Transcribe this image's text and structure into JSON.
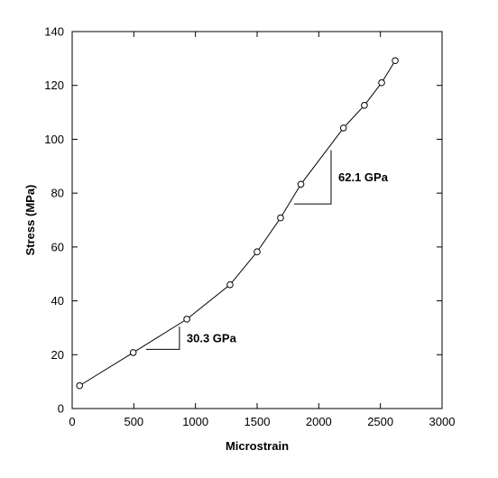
{
  "colors": {
    "background": "#ffffff",
    "ink": "#000000"
  },
  "chart_data": {
    "type": "line",
    "title": "",
    "xlabel": "Microstrain",
    "ylabel": "Stress (MPa)",
    "xlim": [
      0,
      3000
    ],
    "ylim": [
      0,
      140
    ],
    "xticks": [
      0,
      500,
      1000,
      1500,
      2000,
      2500,
      3000
    ],
    "yticks": [
      0,
      20,
      40,
      60,
      80,
      100,
      120,
      140
    ],
    "grid": false,
    "legend": "none",
    "marker": "open-circle",
    "series": [
      {
        "x": [
          60,
          495,
          930,
          1280,
          1500,
          1690,
          1855,
          2200,
          2370,
          2510,
          2620
        ],
        "y": [
          8.5,
          20.8,
          33.2,
          46.0,
          58.2,
          70.8,
          83.3,
          104.2,
          112.6,
          121.0,
          129.2
        ]
      }
    ],
    "annotations": [
      {
        "label": "30.3 GPa",
        "modulus_gpa": 30.3,
        "triangle": {
          "x0": 600,
          "x1": 870,
          "y0": 22,
          "y1": 30.4
        }
      },
      {
        "label": "62.1 GPa",
        "modulus_gpa": 62.1,
        "triangle": {
          "x0": 1800,
          "x1": 2100,
          "y0": 76,
          "y1": 95.9
        }
      }
    ]
  }
}
